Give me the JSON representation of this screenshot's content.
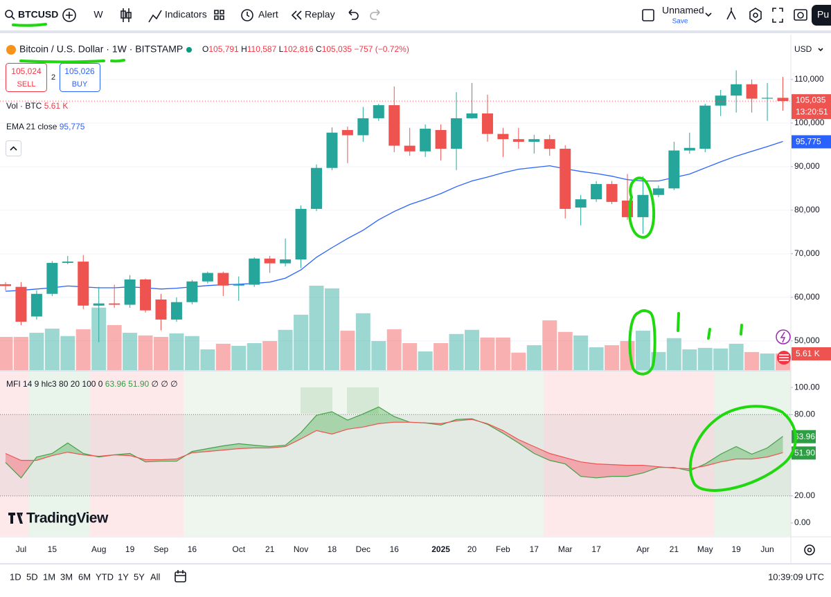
{
  "toolbar": {
    "symbol": "BTCUSD",
    "interval": "W",
    "indicators": "Indicators",
    "alert": "Alert",
    "replay": "Replay",
    "layout_name": "Unnamed",
    "save": "Save",
    "publish": "Pu"
  },
  "legend": {
    "title": "Bitcoin / U.S. Dollar · 1W · BITSTAMP",
    "ohlc": [
      {
        "key": "O",
        "text": "105,791"
      },
      {
        "key": "H",
        "text": "110,587"
      },
      {
        "key": "L",
        "text": "102,816"
      },
      {
        "key": "C",
        "text": "105,035"
      }
    ],
    "change": "−757 (−0.72%)",
    "sell": {
      "price": "105,024",
      "label": "SELL"
    },
    "spread": "2",
    "buy": {
      "price": "105,026",
      "label": "BUY"
    }
  },
  "currency": "USD",
  "logo": "TradingView",
  "ranges": [
    "1D",
    "5D",
    "1M",
    "3M",
    "6M",
    "YTD",
    "1Y",
    "5Y",
    "All"
  ],
  "clock": "10:39:09 UTC",
  "chart_data": [
    {
      "type": "candlestick",
      "categories": [
        null,
        "Jul",
        null,
        "15",
        null,
        null,
        "Aug",
        null,
        "19",
        null,
        "Sep",
        null,
        "16",
        null,
        null,
        "Oct",
        null,
        "21",
        null,
        "Nov",
        null,
        "18",
        null,
        "Dec",
        null,
        "16",
        null,
        null,
        "2025",
        null,
        "20",
        null,
        "Feb",
        null,
        "17",
        null,
        "Mar",
        null,
        "17",
        null,
        null,
        "Apr",
        null,
        "21",
        null,
        "May",
        null,
        "19",
        null,
        "Jun",
        null
      ],
      "open": [
        63000,
        62400,
        55600,
        60800,
        67900,
        68200,
        58100,
        58600,
        58300,
        64100,
        59500,
        54900,
        58900,
        63650,
        65600,
        62700,
        62900,
        68900,
        67800,
        68700,
        80300,
        89700,
        98400,
        97200,
        101100,
        104100,
        94800,
        93500,
        98400,
        94100,
        101100,
        102200,
        97500,
        96300,
        95700,
        96300,
        94100,
        80600,
        82500,
        86000,
        82200,
        78400,
        83500,
        85000,
        93700,
        94100,
        104000,
        106300,
        108900,
        105600,
        105791
      ],
      "high": [
        63500,
        63500,
        61600,
        68300,
        69500,
        69700,
        62400,
        62900,
        65100,
        64300,
        60800,
        60000,
        64000,
        65900,
        65900,
        64800,
        69200,
        69500,
        73500,
        81100,
        90500,
        99000,
        99200,
        103700,
        104400,
        108400,
        98900,
        99700,
        99700,
        107100,
        109200,
        106500,
        98900,
        98900,
        97300,
        97300,
        94900,
        83500,
        86700,
        86700,
        88300,
        87800,
        85700,
        95700,
        97800,
        104400,
        107600,
        112100,
        110000,
        109200,
        110587
      ],
      "low": [
        61600,
        53600,
        54900,
        60300,
        67600,
        57300,
        49700,
        57600,
        57600,
        56500,
        52400,
        54400,
        58400,
        63200,
        60300,
        59200,
        62400,
        65600,
        67100,
        66700,
        79800,
        89200,
        90800,
        95700,
        100500,
        93300,
        92500,
        92200,
        91400,
        89200,
        101000,
        95700,
        92200,
        94100,
        93000,
        92500,
        78100,
        76500,
        81900,
        81400,
        77800,
        74600,
        83000,
        84600,
        93000,
        93300,
        101600,
        102400,
        102400,
        100500,
        102816
      ],
      "close": [
        62600,
        54400,
        60800,
        67900,
        68200,
        58100,
        58600,
        58300,
        64100,
        57000,
        54900,
        58900,
        63650,
        65600,
        62700,
        63000,
        68900,
        67800,
        68700,
        80300,
        89700,
        97800,
        97200,
        101100,
        104100,
        94800,
        93500,
        98700,
        94100,
        101100,
        102200,
        97500,
        96300,
        95700,
        96300,
        94100,
        80300,
        82500,
        86000,
        81900,
        78400,
        83500,
        85000,
        93700,
        94300,
        104000,
        106300,
        108900,
        105600,
        105791,
        105035
      ],
      "up_color": "#26a69a",
      "down_color": "#ef5350",
      "ylim": [
        43300,
        120300
      ],
      "yticks": [
        {
          "value": 50000,
          "label": "50,000"
        },
        {
          "value": 60000,
          "label": "60,000"
        },
        {
          "value": 70000,
          "label": "70,000"
        },
        {
          "value": 80000,
          "label": "80,000"
        },
        {
          "value": 90000,
          "label": "90,000"
        },
        {
          "value": 100000,
          "label": "100,000"
        },
        {
          "value": 110000,
          "label": "110,000"
        }
      ],
      "grid": true,
      "last_price_label": "105,035",
      "countdown": "13:20:51",
      "ema": {
        "name": "EMA 21 close",
        "color": "#2962ff",
        "last_label": "95,775",
        "values": [
          61400,
          61600,
          61900,
          62200,
          62600,
          62400,
          62200,
          62200,
          62400,
          62200,
          61900,
          62100,
          62400,
          62700,
          62900,
          63000,
          63200,
          63500,
          64400,
          66300,
          69200,
          71400,
          73500,
          75400,
          77800,
          79700,
          81300,
          82500,
          83800,
          85400,
          86700,
          87600,
          88600,
          89400,
          89800,
          90200,
          89500,
          88900,
          88400,
          87800,
          87000,
          86700,
          86700,
          87500,
          88300,
          89700,
          91100,
          92400,
          93500,
          94600,
          95775
        ]
      },
      "volume": {
        "name": "Vol · BTC",
        "last_label": "5.61 K",
        "values": [
          11.2,
          11.2,
          12.6,
          14,
          11.5,
          13.8,
          21.1,
          15.2,
          12.6,
          11.7,
          11.2,
          12.4,
          11.5,
          7,
          8.9,
          8.2,
          9.1,
          9.8,
          13.6,
          18.7,
          28.5,
          27.6,
          13.3,
          19.2,
          9.8,
          13.8,
          9.1,
          6.3,
          9.1,
          12.2,
          13.6,
          11,
          11,
          5.9,
          8.4,
          16.8,
          12.9,
          11.7,
          7.7,
          8.4,
          9.8,
          13.3,
          6.1,
          10.8,
          7,
          7.5,
          7.3,
          8.9,
          6.1,
          5.6,
          5.61
        ]
      }
    },
    {
      "type": "line",
      "name": "MFI 14 9 hlc3 80 20 100 0",
      "extra": "∅ ∅ ∅",
      "ylim": [
        -9.7,
        111.8
      ],
      "yticks": [
        {
          "value": 0,
          "label": "0.00"
        },
        {
          "value": 20,
          "label": "20.00"
        },
        {
          "value": 80,
          "label": "80.00"
        },
        {
          "value": 100,
          "label": "100.00"
        }
      ],
      "bands": [
        80,
        20
      ],
      "fill_colors": {
        "up": "rgba(76,175,80,0.38)",
        "down": "rgba(242,54,69,0.32)"
      },
      "series": [
        {
          "color": "#43a047",
          "last_label": "63.96",
          "values": [
            44.6,
            33.3,
            48.7,
            51.3,
            59.0,
            51.3,
            48.7,
            50.3,
            51.3,
            45.1,
            45.6,
            45.6,
            52.8,
            54.9,
            56.9,
            58.5,
            57.4,
            56.4,
            57.4,
            66.7,
            79.5,
            82.1,
            75.9,
            80.5,
            85.6,
            78.5,
            74.4,
            73.8,
            72.3,
            76.4,
            76.9,
            72.8,
            66.2,
            59.0,
            51.3,
            46.2,
            43.6,
            34.4,
            33.3,
            34.4,
            34.4,
            36.9,
            41.0,
            41.0,
            38.5,
            43.6,
            50.8,
            56.4,
            50.8,
            55.4,
            63.96
          ]
        },
        {
          "color": "#ef5350",
          "last_label": "51.90",
          "values": [
            51.3,
            46.2,
            46.2,
            49.7,
            52.3,
            50.3,
            49.2,
            50.3,
            49.7,
            46.7,
            46.7,
            47.2,
            51.8,
            52.8,
            53.8,
            54.9,
            55.4,
            55.4,
            56.4,
            62.1,
            68.2,
            65.6,
            69.2,
            70.8,
            73.3,
            74.4,
            74.4,
            73.8,
            73.3,
            75.4,
            76.4,
            73.3,
            68.2,
            61.5,
            56.4,
            51.3,
            48.2,
            45.1,
            43.6,
            43.1,
            42.6,
            42.6,
            41.5,
            40.5,
            40.0,
            42.1,
            45.1,
            47.2,
            47.2,
            48.7,
            51.9
          ]
        }
      ]
    }
  ]
}
